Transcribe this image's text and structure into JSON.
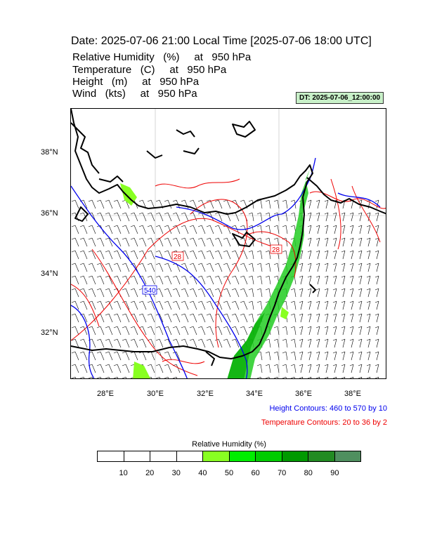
{
  "title": "Date: 2025-07-06  21:00 Local Time [2025-07-06  18:00 UTC]",
  "variables": [
    "Relative Humidity   (%)     at   950 hPa",
    "Temperature   (C)     at   950 hPa",
    "Height   (m)     at   950 hPa",
    "Wind   (kts)     at   950 hPa"
  ],
  "dt_badge": "DT: 2025-07-06_12:00:00",
  "map": {
    "lat_labels": [
      "38°N",
      "36°N",
      "34°N",
      "32°N"
    ],
    "lon_labels": [
      "28°E",
      "30°E",
      "32°E",
      "34°E",
      "36°E",
      "38°E"
    ],
    "height_contour_labels": [
      "540"
    ],
    "temperature_contour_labels": [
      "28",
      "28"
    ],
    "colors": {
      "coast": "#000000",
      "height": "#0000ee",
      "temperature": "#ee0000",
      "humid": "#33cc33",
      "wind": "#000000"
    }
  },
  "height_contours_text": "Height Contours: 460 to 570 by 10",
  "temperature_contours_text": "Temperature Contours: 20 to 36 by 2",
  "colorbar": {
    "title": "Relative Humidity  (%)",
    "ticks": [
      "10",
      "20",
      "30",
      "40",
      "50",
      "60",
      "70",
      "80",
      "90"
    ],
    "colors": [
      "#ffffff",
      "#ffffff",
      "#ffffff",
      "#ffffff",
      "#88ff22",
      "#00ee00",
      "#00cc00",
      "#009900",
      "#228b22",
      "#4f8f5f"
    ]
  }
}
